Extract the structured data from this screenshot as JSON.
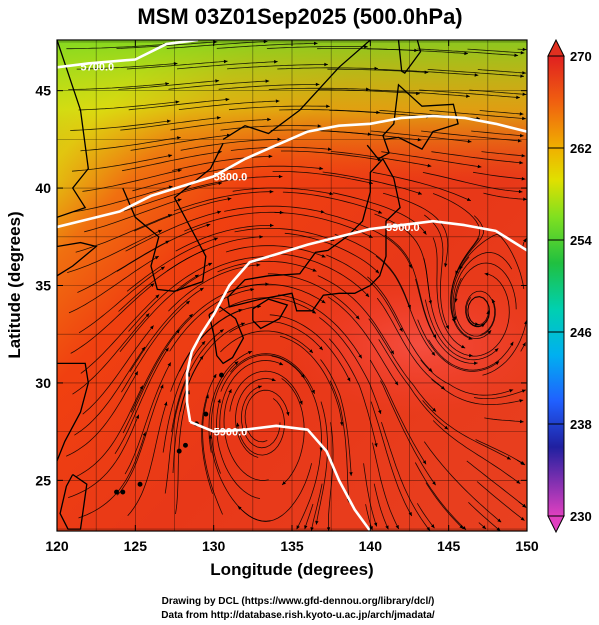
{
  "title": "MSM 03Z01Sep2025 (500.0hPa)",
  "x_axis": {
    "label": "Longitude (degrees)",
    "range": [
      120,
      150
    ],
    "ticks": [
      "120",
      "125",
      "130",
      "135",
      "140",
      "145",
      "150"
    ]
  },
  "y_axis": {
    "label": "Latitude  (degrees)",
    "range": [
      22.4,
      47.6
    ],
    "ticks": [
      "25",
      "30",
      "35",
      "40",
      "45"
    ]
  },
  "colorbar": {
    "range": [
      230,
      270
    ],
    "ticks": [
      "270",
      "262",
      "254",
      "246",
      "238",
      "230"
    ],
    "colors": [
      "#e040c0",
      "#2020a0",
      "#2060ff",
      "#00b0f0",
      "#00d0a0",
      "#20c040",
      "#90e020",
      "#e0e000",
      "#f0a000",
      "#f05010",
      "#e03010"
    ]
  },
  "contours": [
    {
      "label": "5700.0"
    },
    {
      "label": "5800.0"
    },
    {
      "label": "5900.0"
    },
    {
      "label": "5900.0"
    }
  ],
  "credits": {
    "line1": "Drawing by DCL (https://www.gfd-dennou.org/library/dcl/)",
    "line2": "Data from http://database.rish.kyoto-u.ac.jp/arch/jmadata/"
  },
  "chart_data": {
    "type": "heatmap",
    "title": "MSM 03Z01Sep2025 (500.0hPa)",
    "xlabel": "Longitude (degrees)",
    "ylabel": "Latitude  (degrees)",
    "xlim": [
      120,
      150
    ],
    "ylim": [
      22.4,
      47.6
    ],
    "colorbar_range": [
      230,
      270
    ],
    "grid": true,
    "contour_levels": [
      5700,
      5800,
      5900
    ],
    "vortex_center": {
      "lon": 146.5,
      "lat": 33
    }
  }
}
